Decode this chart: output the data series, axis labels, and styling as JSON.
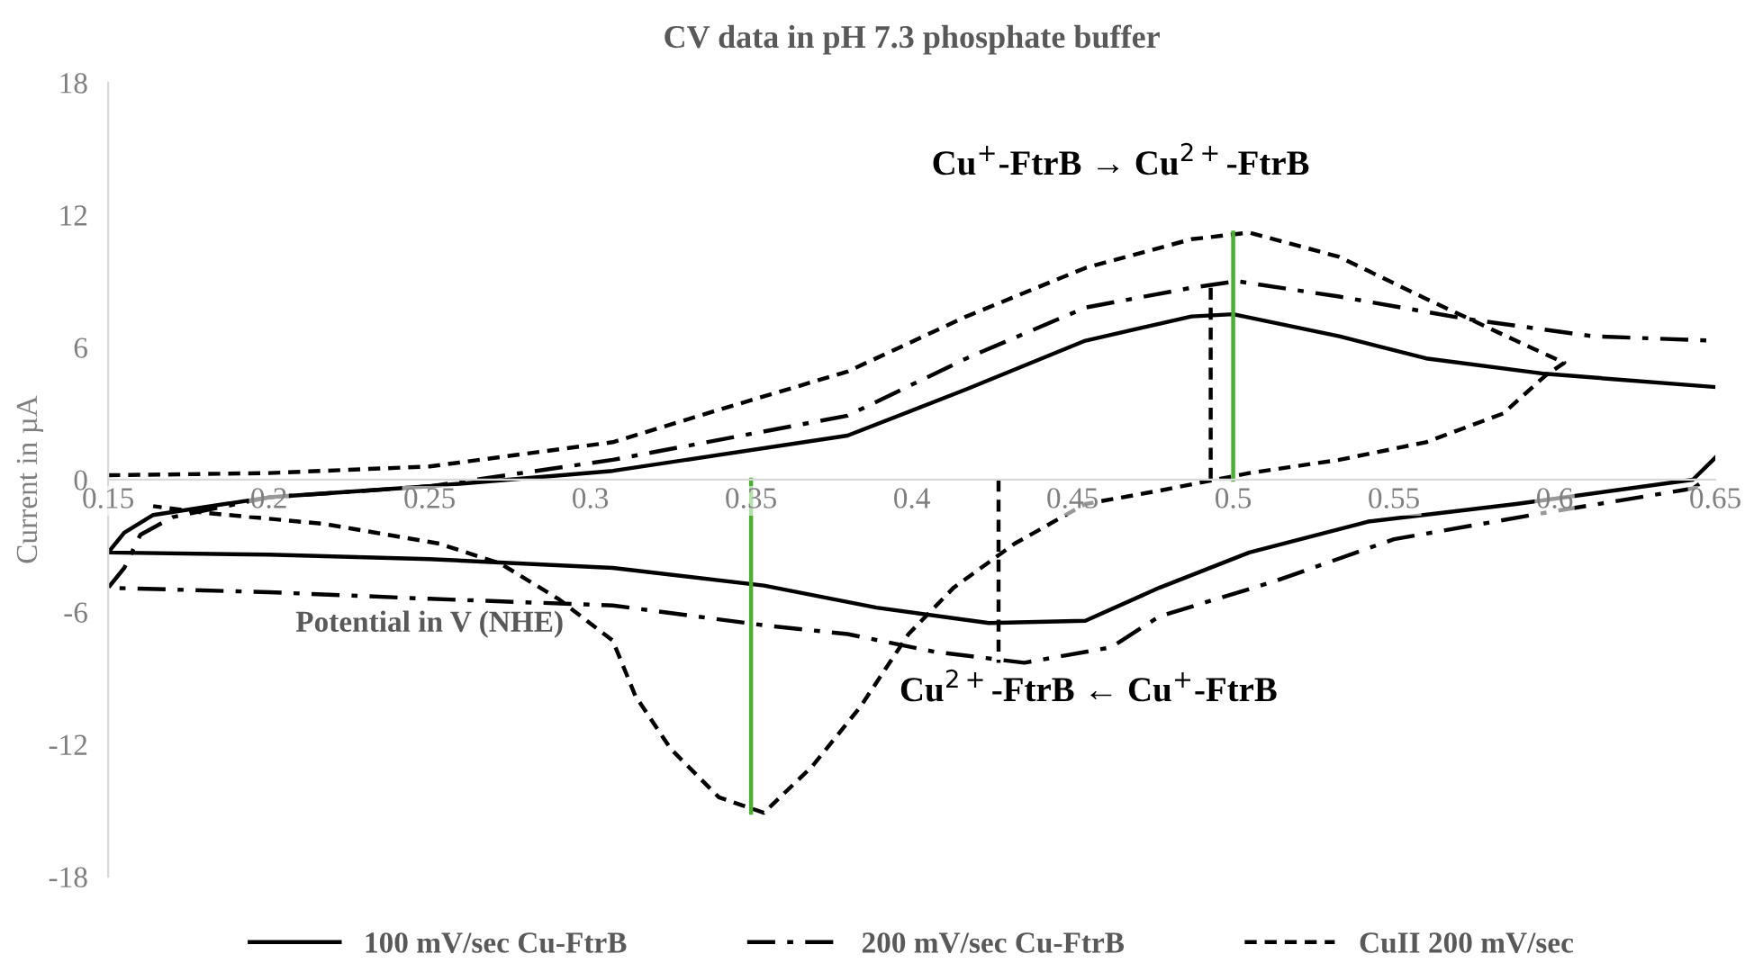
{
  "chart_data": {
    "type": "line",
    "title": "CV data in pH 7.3 phosphate buffer",
    "xlabel": "Potential in V (NHE)",
    "ylabel": "Current in µA",
    "xlim": [
      0.15,
      0.65
    ],
    "xticks": [
      0.15,
      0.2,
      0.25,
      0.3,
      0.35,
      0.4,
      0.45,
      0.5,
      0.55,
      0.6,
      0.65
    ],
    "ylim": [
      -18,
      18
    ],
    "yticks": [
      -18,
      -12,
      -6,
      0,
      6,
      12,
      18
    ],
    "grid": false,
    "legend": "bottom",
    "marker": "none",
    "annotations": [
      "Cu$^{+}$-FtrB → Cu$^{2+}$-FtrB",
      "Cu$^{2+}$-FtrB ← Cu$^{+}$-FtrB"
    ],
    "series": [
      {
        "name": "100 mV/sec Cu-FtrB",
        "color": "#000000",
        "line_style": "solid",
        "x": [
          0.65,
          0.643,
          0.588,
          0.542,
          0.505,
          0.477,
          0.454,
          0.424,
          0.389,
          0.354,
          0.307,
          0.25,
          0.2,
          0.15,
          0.155,
          0.164,
          0.2,
          0.25,
          0.307,
          0.38,
          0.417,
          0.454,
          0.487,
          0.5,
          0.533,
          0.56,
          0.597,
          0.65
        ],
        "values": [
          1.0,
          0.0,
          -1.1,
          -1.9,
          -3.3,
          -4.9,
          -6.4,
          -6.5,
          -5.8,
          -4.8,
          -4.0,
          -3.6,
          -3.4,
          -3.3,
          -2.4,
          -1.6,
          -0.8,
          -0.3,
          0.4,
          2.0,
          4.1,
          6.3,
          7.4,
          7.5,
          6.5,
          5.5,
          4.8,
          4.2
        ]
      },
      {
        "name": "200 mV/sec Cu-FtrB",
        "color": "#000000",
        "line_style": "dashdot",
        "x": [
          0.645,
          0.643,
          0.597,
          0.55,
          0.513,
          0.477,
          0.462,
          0.435,
          0.407,
          0.38,
          0.354,
          0.307,
          0.25,
          0.2,
          0.15,
          0.155,
          0.16,
          0.17,
          0.2,
          0.25,
          0.307,
          0.38,
          0.417,
          0.454,
          0.487,
          0.501,
          0.533,
          0.572,
          0.612,
          0.65
        ],
        "values": [
          -0.2,
          -0.4,
          -1.5,
          -2.7,
          -4.6,
          -6.2,
          -7.6,
          -8.3,
          -7.8,
          -7.0,
          -6.6,
          -5.7,
          -5.4,
          -5.1,
          -4.9,
          -4.0,
          -2.5,
          -1.7,
          -0.8,
          -0.3,
          0.9,
          2.9,
          5.5,
          7.8,
          8.7,
          9.0,
          8.3,
          7.3,
          6.5,
          6.3
        ]
      },
      {
        "name": "CuII 200 mV/sec",
        "color": "#000000",
        "line_style": "dashed",
        "x": [
          0.15,
          0.2,
          0.25,
          0.307,
          0.343,
          0.38,
          0.417,
          0.454,
          0.487,
          0.505,
          0.533,
          0.56,
          0.588,
          0.603,
          0.597,
          0.584,
          0.56,
          0.533,
          0.505,
          0.477,
          0.454,
          0.432,
          0.413,
          0.399,
          0.384,
          0.369,
          0.354,
          0.34,
          0.325,
          0.314,
          0.307,
          0.29,
          0.272,
          0.253,
          0.217,
          0.18,
          0.164
        ],
        "values": [
          0.2,
          0.3,
          0.6,
          1.7,
          3.3,
          4.9,
          7.4,
          9.6,
          10.9,
          11.2,
          10.1,
          8.2,
          6.3,
          5.3,
          4.7,
          3.0,
          1.7,
          0.9,
          0.3,
          -0.5,
          -1.1,
          -2.9,
          -4.9,
          -7.0,
          -10.3,
          -13.0,
          -15.1,
          -14.4,
          -12.2,
          -9.8,
          -7.3,
          -5.4,
          -3.8,
          -2.9,
          -2.0,
          -1.5,
          -1.2
        ]
      },
      {
        "color": "#000000",
        "line_style": "dashed",
        "x": [
          0.493,
          0.493
        ],
        "values": [
          0,
          9.0
        ]
      },
      {
        "color": "#000000",
        "line_style": "dashed",
        "x": [
          0.427,
          0.427
        ],
        "values": [
          0,
          -8.3
        ]
      },
      {
        "color": "#4caf32",
        "line_style": "solid",
        "x": [
          0.5,
          0.5
        ],
        "values": [
          0,
          11.2
        ]
      },
      {
        "color": "#4caf32",
        "line_style": "solid",
        "x": [
          0.35,
          0.35
        ],
        "values": [
          0,
          -15.1
        ]
      }
    ]
  }
}
